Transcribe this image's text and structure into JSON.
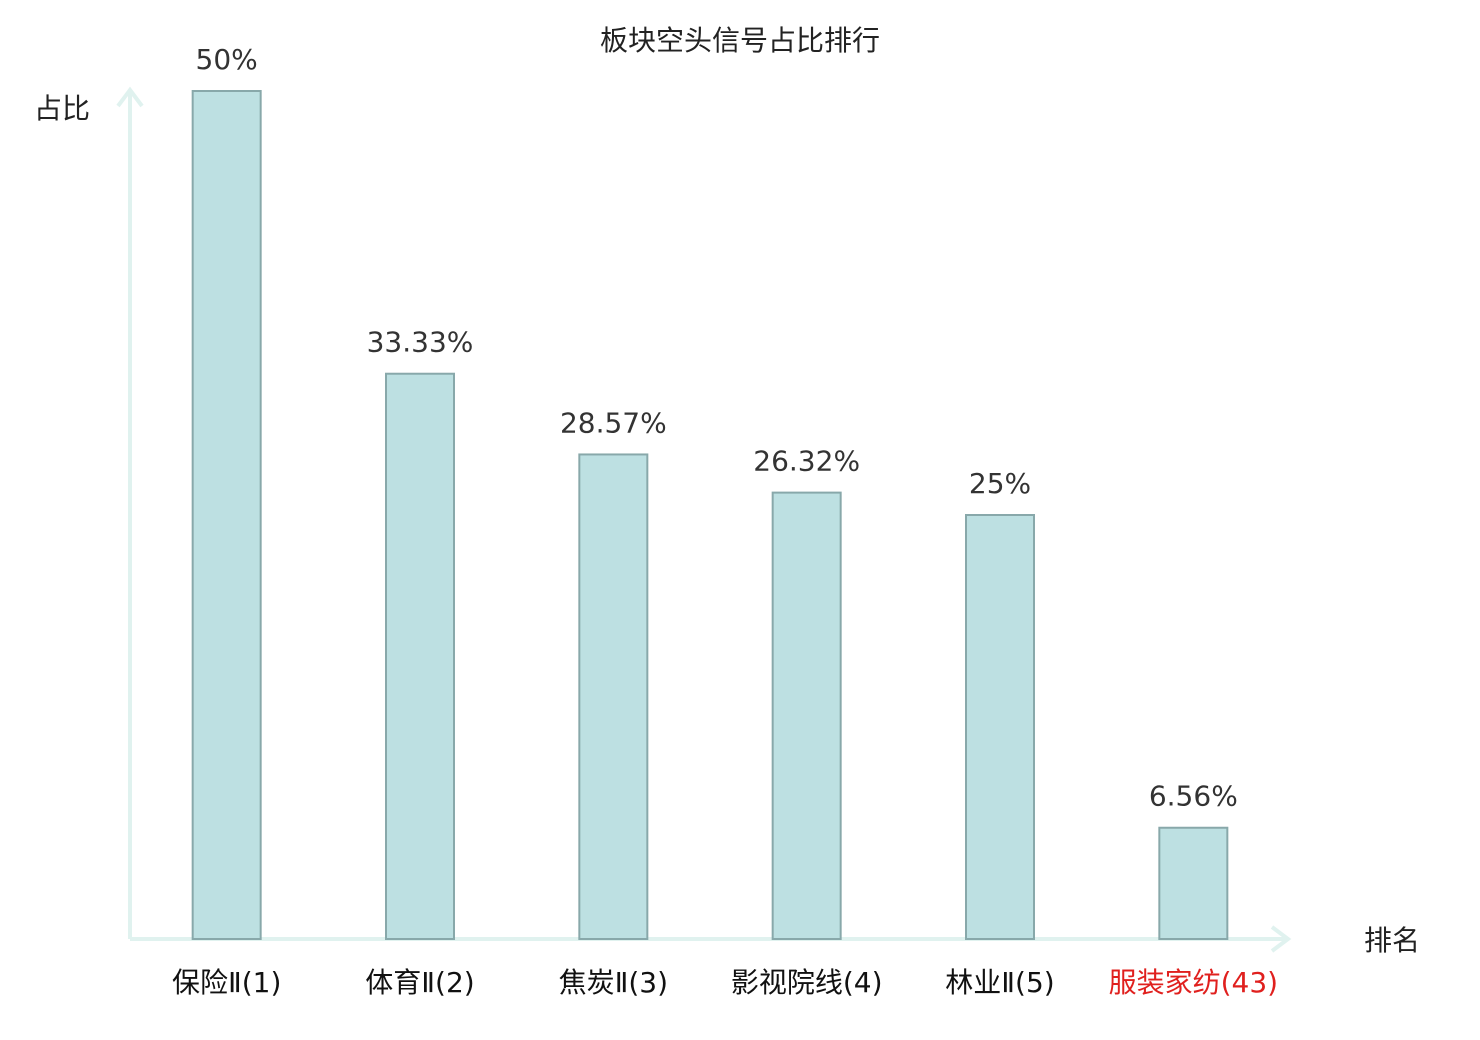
{
  "chart_data": {
    "type": "bar",
    "title": "板块空头信号占比排行",
    "y_label": "占比",
    "x_label": "排名",
    "categories": [
      "保险Ⅱ(1)",
      "体育Ⅱ(2)",
      "焦炭Ⅱ(3)",
      "影视院线(4)",
      "林业Ⅱ(5)",
      "服装家纺(43)"
    ],
    "category_colors": [
      "#111111",
      "#111111",
      "#111111",
      "#111111",
      "#111111",
      "#e0201e"
    ],
    "values": [
      50,
      33.33,
      28.57,
      26.32,
      25,
      6.56
    ],
    "value_labels": [
      "50%",
      "33.33%",
      "28.57%",
      "26.32%",
      "25%",
      "6.56%"
    ],
    "color": "#bde0e2",
    "edge_color": "#88a8aa",
    "ylim": [
      0,
      50
    ]
  }
}
